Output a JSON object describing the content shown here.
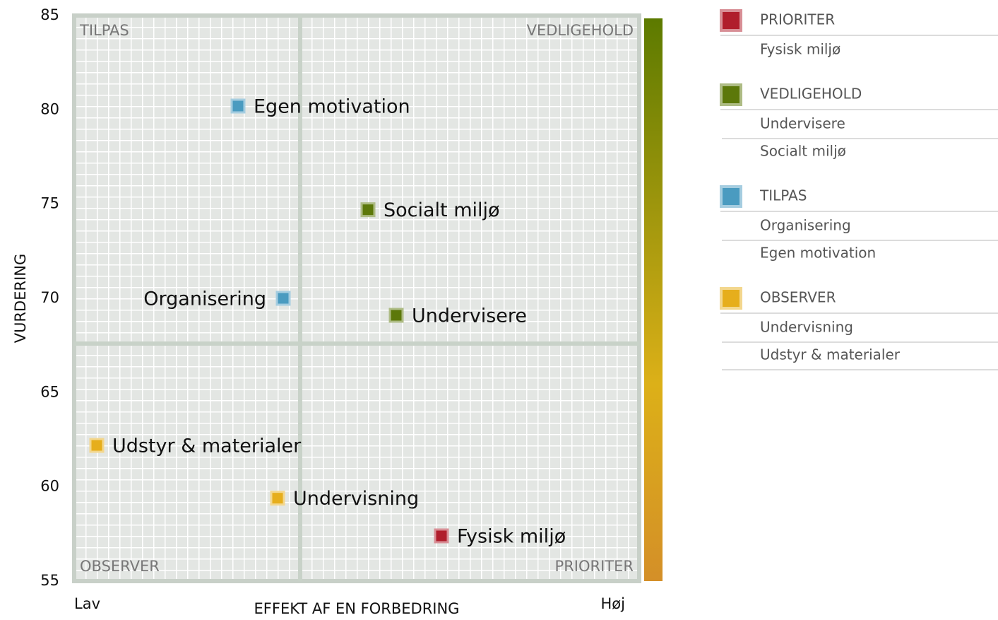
{
  "chart_data": {
    "type": "quadrant_scatter",
    "x_label": "EFFEKT AF EN FORBEDRING",
    "y_label": "VURDERING",
    "xlim": [
      0,
      100
    ],
    "xticks": [
      {
        "value": 0,
        "label": "Lav"
      },
      {
        "value": 100,
        "label": "Høj"
      }
    ],
    "ylim": [
      55,
      85
    ],
    "yticks": [
      55,
      60,
      65,
      70,
      75,
      80,
      85
    ],
    "x_divider": 40,
    "y_divider": 67.6,
    "grid": true,
    "series": [
      {
        "name": "PRIORITER",
        "color": "#b01e2c",
        "quadrant": "bottom-right",
        "labels": [
          "Fysisk miljø"
        ],
        "x": [
          65
        ],
        "values": [
          57.4
        ]
      },
      {
        "name": "VEDLIGEHOLD",
        "color": "#5c780a",
        "quadrant": "top-right",
        "labels": [
          "Undervisere",
          "Socialt miljø"
        ],
        "x": [
          57,
          52
        ],
        "values": [
          69.1,
          74.7
        ]
      },
      {
        "name": "TILPAS",
        "color": "#4a9bc0",
        "quadrant": "top-left",
        "labels": [
          "Organisering",
          "Egen motivation"
        ],
        "x": [
          37,
          29
        ],
        "values": [
          70.0,
          80.2
        ]
      },
      {
        "name": "OBSERVER",
        "color": "#e6ae1c",
        "quadrant": "bottom-left",
        "labels": [
          "Undervisning",
          "Udstyr & materialer"
        ],
        "x": [
          36,
          4
        ],
        "values": [
          59.4,
          62.2
        ]
      }
    ]
  }
}
